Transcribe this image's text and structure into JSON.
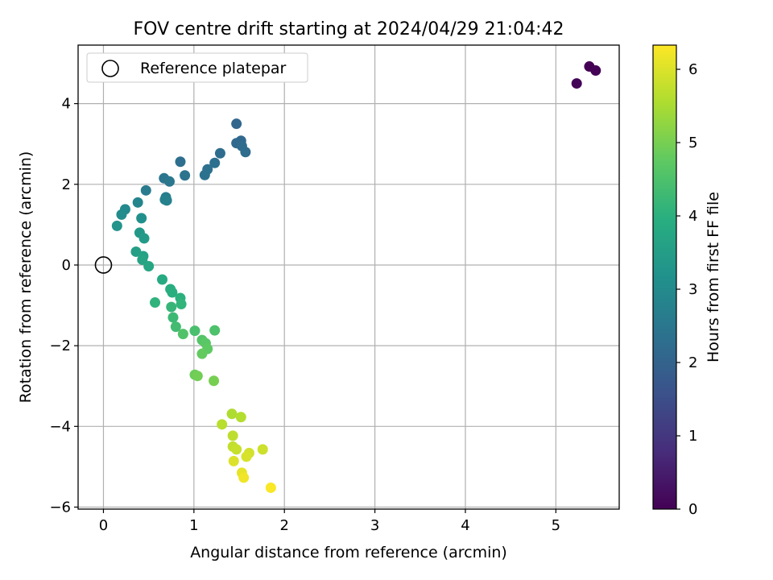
{
  "chart_data": {
    "type": "scatter",
    "title": "FOV centre drift starting at 2024/04/29 21:04:42",
    "xlabel": "Angular distance from reference (arcmin)",
    "ylabel": "Rotation from reference (arcmin)",
    "xlim": [
      -0.28,
      5.7
    ],
    "ylim": [
      -6.05,
      5.45
    ],
    "xticks": [
      0,
      1,
      2,
      3,
      4,
      5
    ],
    "yticks": [
      -6,
      -4,
      -2,
      0,
      2,
      4
    ],
    "grid": true,
    "legend": {
      "placement": "upper-left",
      "entries": [
        "Reference platepar"
      ]
    },
    "reference_point": {
      "x": 0,
      "y": 0,
      "label": "Reference platepar"
    },
    "colorbar": {
      "label": "Hours from first FF file",
      "colormap": "viridis",
      "range": [
        0,
        6.33
      ],
      "ticks": [
        0,
        1,
        2,
        3,
        4,
        5,
        6
      ]
    },
    "points": [
      {
        "x": 5.37,
        "y": 4.92,
        "t": 0.0
      },
      {
        "x": 5.44,
        "y": 4.82,
        "t": 0.03
      },
      {
        "x": 5.23,
        "y": 4.5,
        "t": 0.06
      },
      {
        "x": 1.47,
        "y": 3.5,
        "t": 2.1
      },
      {
        "x": 1.52,
        "y": 3.08,
        "t": 2.13
      },
      {
        "x": 1.47,
        "y": 3.02,
        "t": 2.16
      },
      {
        "x": 1.53,
        "y": 2.95,
        "t": 2.19
      },
      {
        "x": 1.57,
        "y": 2.8,
        "t": 2.22
      },
      {
        "x": 1.29,
        "y": 2.77,
        "t": 2.25
      },
      {
        "x": 0.85,
        "y": 2.56,
        "t": 2.28
      },
      {
        "x": 1.23,
        "y": 2.53,
        "t": 2.31
      },
      {
        "x": 1.15,
        "y": 2.37,
        "t": 2.34
      },
      {
        "x": 1.12,
        "y": 2.23,
        "t": 2.37
      },
      {
        "x": 0.9,
        "y": 2.22,
        "t": 2.4
      },
      {
        "x": 0.67,
        "y": 2.15,
        "t": 2.45
      },
      {
        "x": 0.73,
        "y": 2.07,
        "t": 2.5
      },
      {
        "x": 0.47,
        "y": 1.85,
        "t": 2.6
      },
      {
        "x": 0.69,
        "y": 1.68,
        "t": 2.65
      },
      {
        "x": 0.68,
        "y": 1.62,
        "t": 2.7
      },
      {
        "x": 0.7,
        "y": 1.6,
        "t": 2.75
      },
      {
        "x": 0.38,
        "y": 1.55,
        "t": 2.85
      },
      {
        "x": 0.24,
        "y": 1.38,
        "t": 2.95
      },
      {
        "x": 0.2,
        "y": 1.25,
        "t": 3.05
      },
      {
        "x": 0.42,
        "y": 1.16,
        "t": 3.15
      },
      {
        "x": 0.15,
        "y": 0.97,
        "t": 3.25
      },
      {
        "x": 0.4,
        "y": 0.8,
        "t": 3.35
      },
      {
        "x": 0.45,
        "y": 0.66,
        "t": 3.45
      },
      {
        "x": 0.36,
        "y": 0.33,
        "t": 3.55
      },
      {
        "x": 0.44,
        "y": 0.22,
        "t": 3.62
      },
      {
        "x": 0.43,
        "y": 0.13,
        "t": 3.68
      },
      {
        "x": 0.5,
        "y": -0.03,
        "t": 3.75
      },
      {
        "x": 0.65,
        "y": -0.36,
        "t": 3.85
      },
      {
        "x": 0.74,
        "y": -0.6,
        "t": 3.92
      },
      {
        "x": 0.76,
        "y": -0.68,
        "t": 3.97
      },
      {
        "x": 0.85,
        "y": -0.82,
        "t": 4.02
      },
      {
        "x": 0.57,
        "y": -0.93,
        "t": 4.07
      },
      {
        "x": 0.86,
        "y": -0.97,
        "t": 4.12
      },
      {
        "x": 0.75,
        "y": -1.04,
        "t": 4.17
      },
      {
        "x": 0.77,
        "y": -1.3,
        "t": 4.25
      },
      {
        "x": 0.8,
        "y": -1.53,
        "t": 4.35
      },
      {
        "x": 1.01,
        "y": -1.63,
        "t": 4.45
      },
      {
        "x": 1.23,
        "y": -1.62,
        "t": 4.5
      },
      {
        "x": 0.88,
        "y": -1.71,
        "t": 4.55
      },
      {
        "x": 1.09,
        "y": -1.86,
        "t": 4.62
      },
      {
        "x": 1.13,
        "y": -1.94,
        "t": 4.68
      },
      {
        "x": 1.15,
        "y": -2.08,
        "t": 4.74
      },
      {
        "x": 1.09,
        "y": -2.2,
        "t": 4.8
      },
      {
        "x": 1.01,
        "y": -2.72,
        "t": 4.88
      },
      {
        "x": 1.04,
        "y": -2.75,
        "t": 4.95
      },
      {
        "x": 1.22,
        "y": -2.87,
        "t": 5.0
      },
      {
        "x": 1.42,
        "y": -3.69,
        "t": 5.55
      },
      {
        "x": 1.52,
        "y": -3.77,
        "t": 5.6
      },
      {
        "x": 1.31,
        "y": -3.95,
        "t": 5.65
      },
      {
        "x": 1.43,
        "y": -4.23,
        "t": 5.7
      },
      {
        "x": 1.43,
        "y": -4.5,
        "t": 5.75
      },
      {
        "x": 1.47,
        "y": -4.57,
        "t": 5.8
      },
      {
        "x": 1.76,
        "y": -4.57,
        "t": 5.85
      },
      {
        "x": 1.61,
        "y": -4.66,
        "t": 5.9
      },
      {
        "x": 1.58,
        "y": -4.75,
        "t": 5.95
      },
      {
        "x": 1.44,
        "y": -4.86,
        "t": 6.0
      },
      {
        "x": 1.53,
        "y": -5.15,
        "t": 6.1
      },
      {
        "x": 1.55,
        "y": -5.27,
        "t": 6.2
      },
      {
        "x": 1.85,
        "y": -5.52,
        "t": 6.3
      }
    ]
  }
}
